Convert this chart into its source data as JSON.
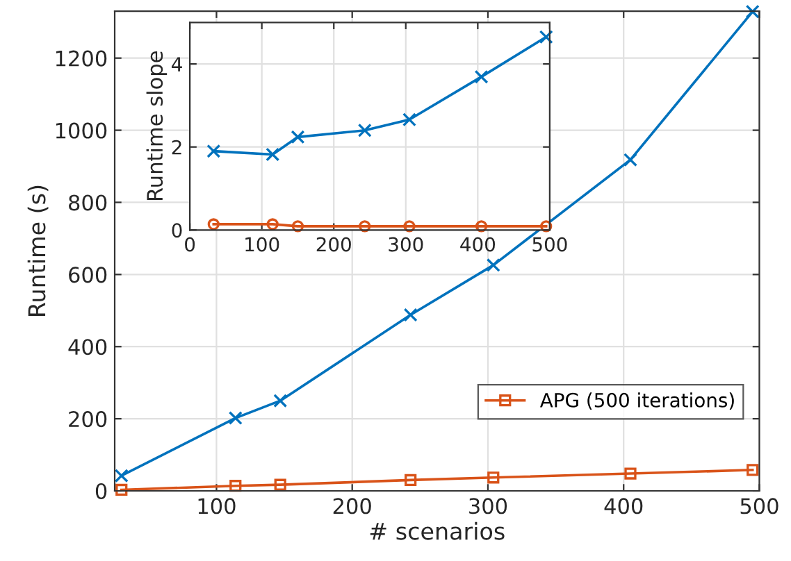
{
  "chart_data": [
    {
      "type": "line",
      "xlabel": "# scenarios",
      "ylabel": "Runtime (s)",
      "xlim": [
        25,
        500
      ],
      "ylim": [
        0,
        1330
      ],
      "xticks": [
        100,
        200,
        300,
        400,
        500
      ],
      "yticks": [
        0,
        200,
        400,
        600,
        800,
        1000,
        1200
      ],
      "grid": true,
      "legend": "bottom right",
      "line_style": "solid",
      "series": [
        {
          "color": "#0072bd",
          "marker": "cross",
          "x": [
            30,
            114,
            147,
            243,
            304,
            405,
            495
          ],
          "values": [
            42,
            202,
            250,
            488,
            626,
            918,
            1329
          ]
        },
        {
          "name": "APG (500 iterations)",
          "color": "#d95319",
          "marker": "square",
          "x": [
            30,
            114,
            147,
            243,
            304,
            405,
            495
          ],
          "values": [
            3,
            14,
            17,
            30,
            37,
            48,
            58
          ]
        }
      ]
    },
    {
      "type": "line",
      "ylabel": "Runtime slope",
      "xlim": [
        0,
        500
      ],
      "ylim": [
        0,
        5
      ],
      "xticks": [
        0,
        100,
        200,
        300,
        400,
        500
      ],
      "yticks": [
        0,
        2,
        4
      ],
      "grid": true,
      "line_style": "solid",
      "series": [
        {
          "color": "#0072bd",
          "marker": "cross",
          "x": [
            33,
            115,
            150,
            243,
            305,
            405,
            495
          ],
          "values": [
            1.9,
            1.82,
            2.24,
            2.4,
            2.66,
            3.69,
            4.65
          ]
        },
        {
          "color": "#d95319",
          "marker": "circle",
          "x": [
            33,
            115,
            150,
            243,
            305,
            405,
            495
          ],
          "values": [
            0.14,
            0.14,
            0.09,
            0.09,
            0.09,
            0.09,
            0.09
          ]
        }
      ]
    }
  ]
}
